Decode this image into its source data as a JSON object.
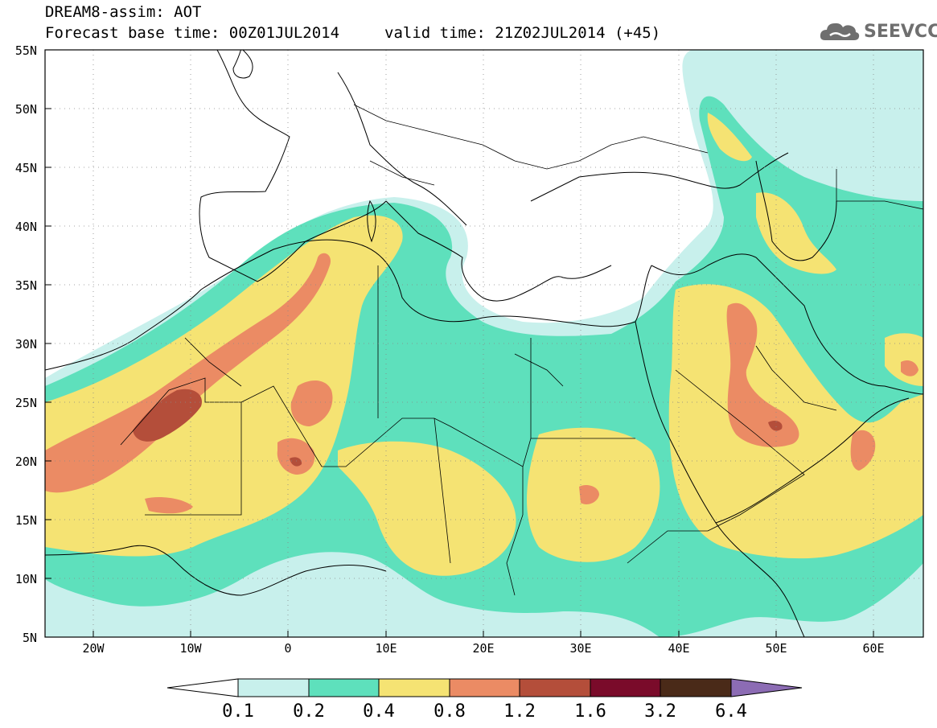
{
  "header": {
    "line1": "DREAM8-assim: AOT",
    "line2": "Forecast base time: 00Z01JUL2014",
    "line3": "valid time: 21Z02JUL2014 (+45)"
  },
  "logo": {
    "text": "SEEVCCC",
    "icon": "cloud-icon"
  },
  "map": {
    "lat_labels": [
      "55N",
      "50N",
      "45N",
      "40N",
      "35N",
      "30N",
      "25N",
      "20N",
      "15N",
      "10N",
      "5N"
    ],
    "lon_labels": [
      "20W",
      "10W",
      "0",
      "10E",
      "20E",
      "30E",
      "40E",
      "50E",
      "60E"
    ],
    "lat_range": [
      5,
      55
    ],
    "lon_range": [
      -25,
      65
    ],
    "field": "Aerosol optical thickness (dust)"
  },
  "colorbar": {
    "labels": [
      "0.1",
      "0.2",
      "0.4",
      "0.8",
      "1.2",
      "1.6",
      "3.2",
      "6.4"
    ],
    "colors": [
      "#c8f0ec",
      "#5ee0bc",
      "#f5e373",
      "#eb8b64",
      "#b44e3a",
      "#7a0b2a",
      "#4a2a18",
      "#8c6cb4"
    ]
  },
  "palette": {
    "c1": "#c8f0ec",
    "c2": "#5ee0bc",
    "c3": "#f5e373",
    "c4": "#eb8b64",
    "c5": "#b44e3a",
    "c6": "#7a0b2a"
  }
}
